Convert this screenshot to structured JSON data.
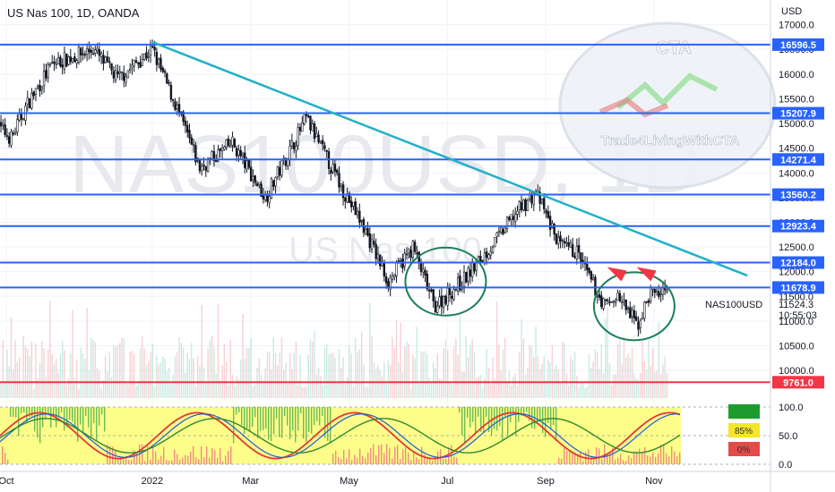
{
  "header": {
    "title": "US Nas 100, 1D, OANDA"
  },
  "watermark": {
    "symbol": "NAS100USD, 1D",
    "name": "US Nas 100"
  },
  "logo": {
    "brand": "CTA",
    "tagline": "Trade4LivingWithCTA"
  },
  "chart_data": {
    "type": "candlestick",
    "symbol_label": "NAS100USD",
    "currency": "USD",
    "ylim": [
      9350,
      17500
    ],
    "price_ticks": [
      17000.0,
      16500.0,
      16000.0,
      15500.0,
      15000.0,
      14500.0,
      14000.0,
      13500.0,
      13000.0,
      12500.0,
      12000.0,
      11500.0,
      11000.0,
      10500.0,
      10000.0
    ],
    "price_tick_labels": [
      "17000.0",
      "16500.0",
      "16000.0",
      "15500.0",
      "15000.0",
      "14500.0",
      "14000.0",
      "13500.0",
      "13000.0",
      "12500.0",
      "12000.0",
      "11500.0",
      "11000.0",
      "10500.0",
      "10000.0"
    ],
    "x_labels": [
      "Oct",
      "2022",
      "Mar",
      "May",
      "Jul",
      "Sep",
      "Nov"
    ],
    "x_label_days": [
      7,
      96,
      156,
      216,
      276,
      336,
      402
    ],
    "last_price": "11524.3",
    "countdown": "10:55:03",
    "horizontal_levels": [
      {
        "value": 16596.5,
        "label": "16596.5",
        "color": "#2962ff"
      },
      {
        "value": 15207.9,
        "label": "15207.9",
        "color": "#2962ff"
      },
      {
        "value": 14271.4,
        "label": "14271.4",
        "color": "#2962ff"
      },
      {
        "value": 13560.2,
        "label": "13560.2",
        "color": "#2962ff"
      },
      {
        "value": 12923.4,
        "label": "12923.4",
        "color": "#2962ff"
      },
      {
        "value": 12184.0,
        "label": "12184.0",
        "color": "#2962ff"
      },
      {
        "value": 11678.9,
        "label": "11678.9",
        "color": "#2962ff"
      },
      {
        "value": 9761.0,
        "label": "9761.0",
        "color": "#f23645"
      }
    ],
    "trendline": {
      "from": {
        "day": 96,
        "price": 16650
      },
      "to": {
        "day": 459,
        "price": 11920
      },
      "color": "#22b0c8"
    },
    "closes_anchors": [
      {
        "day": 0,
        "price": 15000
      },
      {
        "day": 10,
        "price": 14700
      },
      {
        "day": 20,
        "price": 15400
      },
      {
        "day": 35,
        "price": 16200
      },
      {
        "day": 60,
        "price": 16500
      },
      {
        "day": 75,
        "price": 15900
      },
      {
        "day": 96,
        "price": 16500
      },
      {
        "day": 110,
        "price": 15400
      },
      {
        "day": 125,
        "price": 14100
      },
      {
        "day": 145,
        "price": 14600
      },
      {
        "day": 165,
        "price": 13500
      },
      {
        "day": 190,
        "price": 15100
      },
      {
        "day": 210,
        "price": 13800
      },
      {
        "day": 225,
        "price": 12900
      },
      {
        "day": 240,
        "price": 11800
      },
      {
        "day": 255,
        "price": 12500
      },
      {
        "day": 268,
        "price": 11300
      },
      {
        "day": 285,
        "price": 11800
      },
      {
        "day": 305,
        "price": 12600
      },
      {
        "day": 318,
        "price": 13200
      },
      {
        "day": 330,
        "price": 13600
      },
      {
        "day": 345,
        "price": 12500
      },
      {
        "day": 355,
        "price": 12400
      },
      {
        "day": 362,
        "price": 11900
      },
      {
        "day": 372,
        "price": 11300
      },
      {
        "day": 380,
        "price": 11500
      },
      {
        "day": 392,
        "price": 10900
      },
      {
        "day": 400,
        "price": 11600
      },
      {
        "day": 410,
        "price": 11524
      }
    ],
    "oscillator": {
      "ylim": [
        0,
        100
      ],
      "ticks": [
        100.0,
        50.0,
        0.0
      ],
      "tick_labels": [
        "100.0",
        "50.0",
        "0.0"
      ],
      "panel_values": [
        "",
        "85%",
        "0%"
      ],
      "panel_colors": [
        "#1e9b2e",
        "#f4e62a",
        "#e34a4a"
      ]
    },
    "annotations": [
      {
        "type": "ellipse",
        "center_day": 275,
        "center_price": 11800,
        "color": "#1a7f55"
      },
      {
        "type": "ellipse",
        "center_day": 390,
        "center_price": 11300,
        "color": "#1a7f55"
      },
      {
        "type": "arrow",
        "day": 380,
        "price": 11950,
        "color": "#f23645"
      },
      {
        "type": "arrow",
        "day": 398,
        "price": 11950,
        "color": "#f23645"
      }
    ]
  }
}
